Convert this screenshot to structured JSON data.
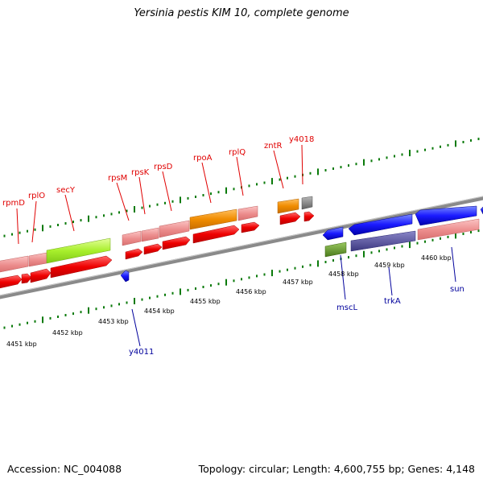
{
  "title": "Yersinia pestis KIM 10, complete genome",
  "accession": "Accession: NC_004088",
  "stats": "Topology: circular; Length: 4,600,755 bp; Genes: 4,148",
  "colors": {
    "label_top": "#e00000",
    "label_bottom": "#00009c",
    "tick": "#0a7a0a",
    "backbone": "#8a8a8a"
  },
  "scale_labels": [
    "4451 kbp",
    "4452 kbp",
    "4453 kbp",
    "4454 kbp",
    "4455 kbp",
    "4456 kbp",
    "4457 kbp",
    "4458 kbp",
    "4459 kbp",
    "4460 kbp"
  ],
  "gene_labels_top": [
    "rpmD",
    "rplO",
    "secY",
    "rpsM",
    "rpsK",
    "rpsD",
    "rpoA",
    "rplQ",
    "zntR",
    "y4018"
  ],
  "gene_labels_bottom": [
    "y4011",
    "mscL",
    "trkA",
    "sun"
  ]
}
